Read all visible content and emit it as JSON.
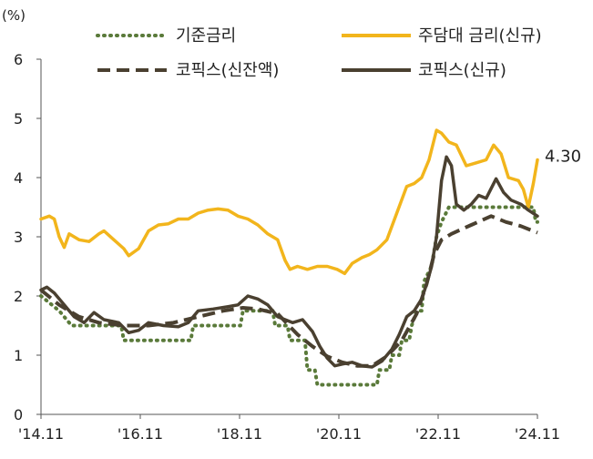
{
  "chart_data": {
    "type": "line",
    "unit_label": "(%)",
    "ylim": [
      0,
      6
    ],
    "y_ticks": [
      "0",
      "1",
      "2",
      "3",
      "4",
      "5",
      "6"
    ],
    "x_range": [
      2014.833,
      2024.833
    ],
    "x_ticks": [
      {
        "label": "'14.11",
        "x": 2014.833
      },
      {
        "label": "'16.11",
        "x": 2016.833
      },
      {
        "label": "'18.11",
        "x": 2018.833
      },
      {
        "label": "'20.11",
        "x": 2020.833
      },
      {
        "label": "'22.11",
        "x": 2022.833
      },
      {
        "label": "'24.11",
        "x": 2024.833
      }
    ],
    "legend_position": "top",
    "end_annotation": {
      "text": "4.30",
      "series": "주담대 금리(신규)"
    },
    "series": [
      {
        "name": "기준금리",
        "color": "#5a7a3a",
        "style": "dotted",
        "points": [
          [
            2014.833,
            2.0
          ],
          [
            2015.2,
            1.75
          ],
          [
            2015.45,
            1.5
          ],
          [
            2016.45,
            1.5
          ],
          [
            2016.5,
            1.25
          ],
          [
            2017.85,
            1.25
          ],
          [
            2017.9,
            1.5
          ],
          [
            2018.85,
            1.5
          ],
          [
            2018.9,
            1.75
          ],
          [
            2019.5,
            1.75
          ],
          [
            2019.55,
            1.5
          ],
          [
            2019.8,
            1.5
          ],
          [
            2019.85,
            1.25
          ],
          [
            2020.15,
            1.25
          ],
          [
            2020.2,
            0.75
          ],
          [
            2020.35,
            0.75
          ],
          [
            2020.4,
            0.5
          ],
          [
            2021.6,
            0.5
          ],
          [
            2021.65,
            0.75
          ],
          [
            2021.85,
            0.75
          ],
          [
            2021.9,
            1.0
          ],
          [
            2022.05,
            1.0
          ],
          [
            2022.1,
            1.25
          ],
          [
            2022.25,
            1.25
          ],
          [
            2022.3,
            1.5
          ],
          [
            2022.4,
            1.75
          ],
          [
            2022.5,
            1.75
          ],
          [
            2022.55,
            2.25
          ],
          [
            2022.7,
            2.5
          ],
          [
            2022.8,
            3.0
          ],
          [
            2022.9,
            3.25
          ],
          [
            2023.05,
            3.5
          ],
          [
            2024.75,
            3.5
          ],
          [
            2024.8,
            3.25
          ],
          [
            2024.833,
            3.25
          ]
        ]
      },
      {
        "name": "주담대 금리(신규)",
        "color": "#f2b51c",
        "style": "solid",
        "points": [
          [
            2014.833,
            3.3
          ],
          [
            2015.0,
            3.35
          ],
          [
            2015.1,
            3.3
          ],
          [
            2015.2,
            3.0
          ],
          [
            2015.3,
            2.82
          ],
          [
            2015.4,
            3.05
          ],
          [
            2015.6,
            2.95
          ],
          [
            2015.8,
            2.92
          ],
          [
            2016.0,
            3.05
          ],
          [
            2016.1,
            3.1
          ],
          [
            2016.3,
            2.95
          ],
          [
            2016.5,
            2.8
          ],
          [
            2016.6,
            2.68
          ],
          [
            2016.8,
            2.8
          ],
          [
            2017.0,
            3.1
          ],
          [
            2017.2,
            3.2
          ],
          [
            2017.4,
            3.22
          ],
          [
            2017.6,
            3.3
          ],
          [
            2017.8,
            3.3
          ],
          [
            2018.0,
            3.4
          ],
          [
            2018.2,
            3.45
          ],
          [
            2018.4,
            3.47
          ],
          [
            2018.6,
            3.45
          ],
          [
            2018.8,
            3.35
          ],
          [
            2019.0,
            3.3
          ],
          [
            2019.2,
            3.2
          ],
          [
            2019.4,
            3.05
          ],
          [
            2019.6,
            2.95
          ],
          [
            2019.75,
            2.6
          ],
          [
            2019.85,
            2.45
          ],
          [
            2020.0,
            2.5
          ],
          [
            2020.2,
            2.45
          ],
          [
            2020.4,
            2.5
          ],
          [
            2020.6,
            2.5
          ],
          [
            2020.8,
            2.45
          ],
          [
            2020.95,
            2.38
          ],
          [
            2021.1,
            2.55
          ],
          [
            2021.3,
            2.65
          ],
          [
            2021.45,
            2.7
          ],
          [
            2021.6,
            2.78
          ],
          [
            2021.8,
            2.95
          ],
          [
            2022.0,
            3.4
          ],
          [
            2022.2,
            3.85
          ],
          [
            2022.35,
            3.9
          ],
          [
            2022.5,
            4.0
          ],
          [
            2022.65,
            4.3
          ],
          [
            2022.8,
            4.8
          ],
          [
            2022.9,
            4.75
          ],
          [
            2023.05,
            4.6
          ],
          [
            2023.2,
            4.55
          ],
          [
            2023.4,
            4.2
          ],
          [
            2023.6,
            4.25
          ],
          [
            2023.8,
            4.3
          ],
          [
            2023.95,
            4.55
          ],
          [
            2024.1,
            4.4
          ],
          [
            2024.25,
            4.0
          ],
          [
            2024.45,
            3.95
          ],
          [
            2024.55,
            3.8
          ],
          [
            2024.65,
            3.5
          ],
          [
            2024.75,
            3.9
          ],
          [
            2024.833,
            4.3
          ]
        ]
      },
      {
        "name": "코픽스(신잔액)",
        "color": "#4a4030",
        "style": "dashed",
        "points": [
          [
            2014.833,
            2.1
          ],
          [
            2015.2,
            1.85
          ],
          [
            2015.6,
            1.65
          ],
          [
            2016.0,
            1.55
          ],
          [
            2016.5,
            1.5
          ],
          [
            2017.0,
            1.5
          ],
          [
            2017.5,
            1.55
          ],
          [
            2018.0,
            1.65
          ],
          [
            2018.5,
            1.75
          ],
          [
            2018.9,
            1.8
          ],
          [
            2019.2,
            1.78
          ],
          [
            2019.6,
            1.7
          ],
          [
            2020.0,
            1.35
          ],
          [
            2020.3,
            1.15
          ],
          [
            2020.6,
            0.98
          ],
          [
            2020.9,
            0.88
          ],
          [
            2021.2,
            0.82
          ],
          [
            2021.5,
            0.82
          ],
          [
            2021.8,
            0.98
          ],
          [
            2022.1,
            1.25
          ],
          [
            2022.4,
            1.7
          ],
          [
            2022.6,
            2.2
          ],
          [
            2022.75,
            2.7
          ],
          [
            2022.9,
            2.95
          ],
          [
            2023.1,
            3.05
          ],
          [
            2023.5,
            3.2
          ],
          [
            2023.9,
            3.35
          ],
          [
            2024.2,
            3.25
          ],
          [
            2024.5,
            3.18
          ],
          [
            2024.833,
            3.07
          ]
        ]
      },
      {
        "name": "코픽스(신규)",
        "color": "#4a4030",
        "style": "solid",
        "points": [
          [
            2014.833,
            2.1
          ],
          [
            2014.95,
            2.15
          ],
          [
            2015.1,
            2.05
          ],
          [
            2015.3,
            1.85
          ],
          [
            2015.5,
            1.65
          ],
          [
            2015.7,
            1.55
          ],
          [
            2015.9,
            1.72
          ],
          [
            2016.1,
            1.6
          ],
          [
            2016.4,
            1.55
          ],
          [
            2016.6,
            1.38
          ],
          [
            2016.8,
            1.42
          ],
          [
            2017.0,
            1.55
          ],
          [
            2017.3,
            1.5
          ],
          [
            2017.6,
            1.48
          ],
          [
            2017.8,
            1.55
          ],
          [
            2018.0,
            1.75
          ],
          [
            2018.3,
            1.78
          ],
          [
            2018.6,
            1.82
          ],
          [
            2018.8,
            1.85
          ],
          [
            2019.0,
            2.0
          ],
          [
            2019.2,
            1.95
          ],
          [
            2019.4,
            1.85
          ],
          [
            2019.6,
            1.65
          ],
          [
            2019.9,
            1.55
          ],
          [
            2020.1,
            1.6
          ],
          [
            2020.3,
            1.4
          ],
          [
            2020.45,
            1.15
          ],
          [
            2020.6,
            0.95
          ],
          [
            2020.75,
            0.82
          ],
          [
            2020.9,
            0.85
          ],
          [
            2021.1,
            0.88
          ],
          [
            2021.3,
            0.82
          ],
          [
            2021.5,
            0.8
          ],
          [
            2021.7,
            0.9
          ],
          [
            2021.9,
            1.1
          ],
          [
            2022.05,
            1.35
          ],
          [
            2022.2,
            1.65
          ],
          [
            2022.35,
            1.75
          ],
          [
            2022.5,
            1.95
          ],
          [
            2022.6,
            2.2
          ],
          [
            2022.7,
            2.5
          ],
          [
            2022.8,
            3.0
          ],
          [
            2022.9,
            3.95
          ],
          [
            2023.0,
            4.35
          ],
          [
            2023.1,
            4.2
          ],
          [
            2023.2,
            3.55
          ],
          [
            2023.35,
            3.45
          ],
          [
            2023.5,
            3.55
          ],
          [
            2023.65,
            3.7
          ],
          [
            2023.8,
            3.65
          ],
          [
            2024.0,
            3.98
          ],
          [
            2024.15,
            3.75
          ],
          [
            2024.3,
            3.62
          ],
          [
            2024.5,
            3.55
          ],
          [
            2024.65,
            3.45
          ],
          [
            2024.833,
            3.35
          ]
        ]
      }
    ]
  }
}
